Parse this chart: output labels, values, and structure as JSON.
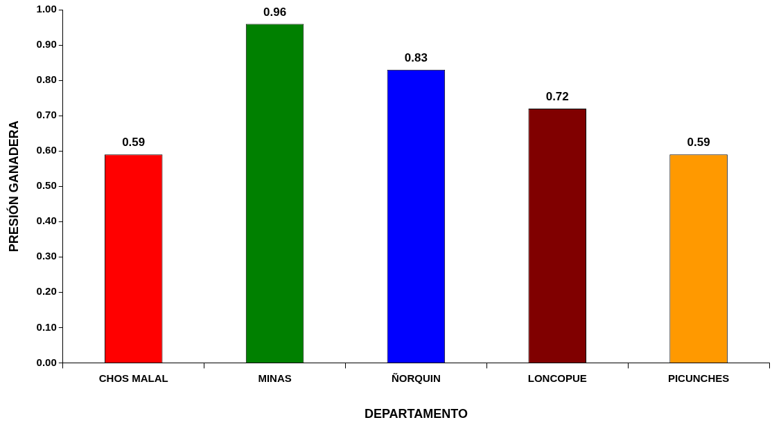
{
  "chart_data": {
    "type": "bar",
    "xlabel": "DEPARTAMENTO",
    "ylabel": "PRESIÓN GANADERA",
    "categories": [
      "CHOS MALAL",
      "MINAS",
      "ÑORQUIN",
      "LONCOPUE",
      "PICUNCHES"
    ],
    "values": [
      0.59,
      0.96,
      0.83,
      0.72,
      0.59
    ],
    "colors": [
      "#ff0000",
      "#008000",
      "#0000ff",
      "#800000",
      "#ff9900"
    ],
    "ylim": [
      0,
      1
    ],
    "yticks": [
      {
        "value": 0,
        "label": "0.00"
      },
      {
        "value": 0.1,
        "label": "0.10"
      },
      {
        "value": 0.2,
        "label": "0.20"
      },
      {
        "value": 0.3,
        "label": "0.30"
      },
      {
        "value": 0.4,
        "label": "0.40"
      },
      {
        "value": 0.5,
        "label": "0.50"
      },
      {
        "value": 0.6,
        "label": "0.60"
      },
      {
        "value": 0.7,
        "label": "0.70"
      },
      {
        "value": 0.8,
        "label": "0.80"
      },
      {
        "value": 0.9,
        "label": "0.90"
      },
      {
        "value": 1,
        "label": "1.00"
      }
    ],
    "data_labels": true,
    "grid": false,
    "legend": false
  }
}
